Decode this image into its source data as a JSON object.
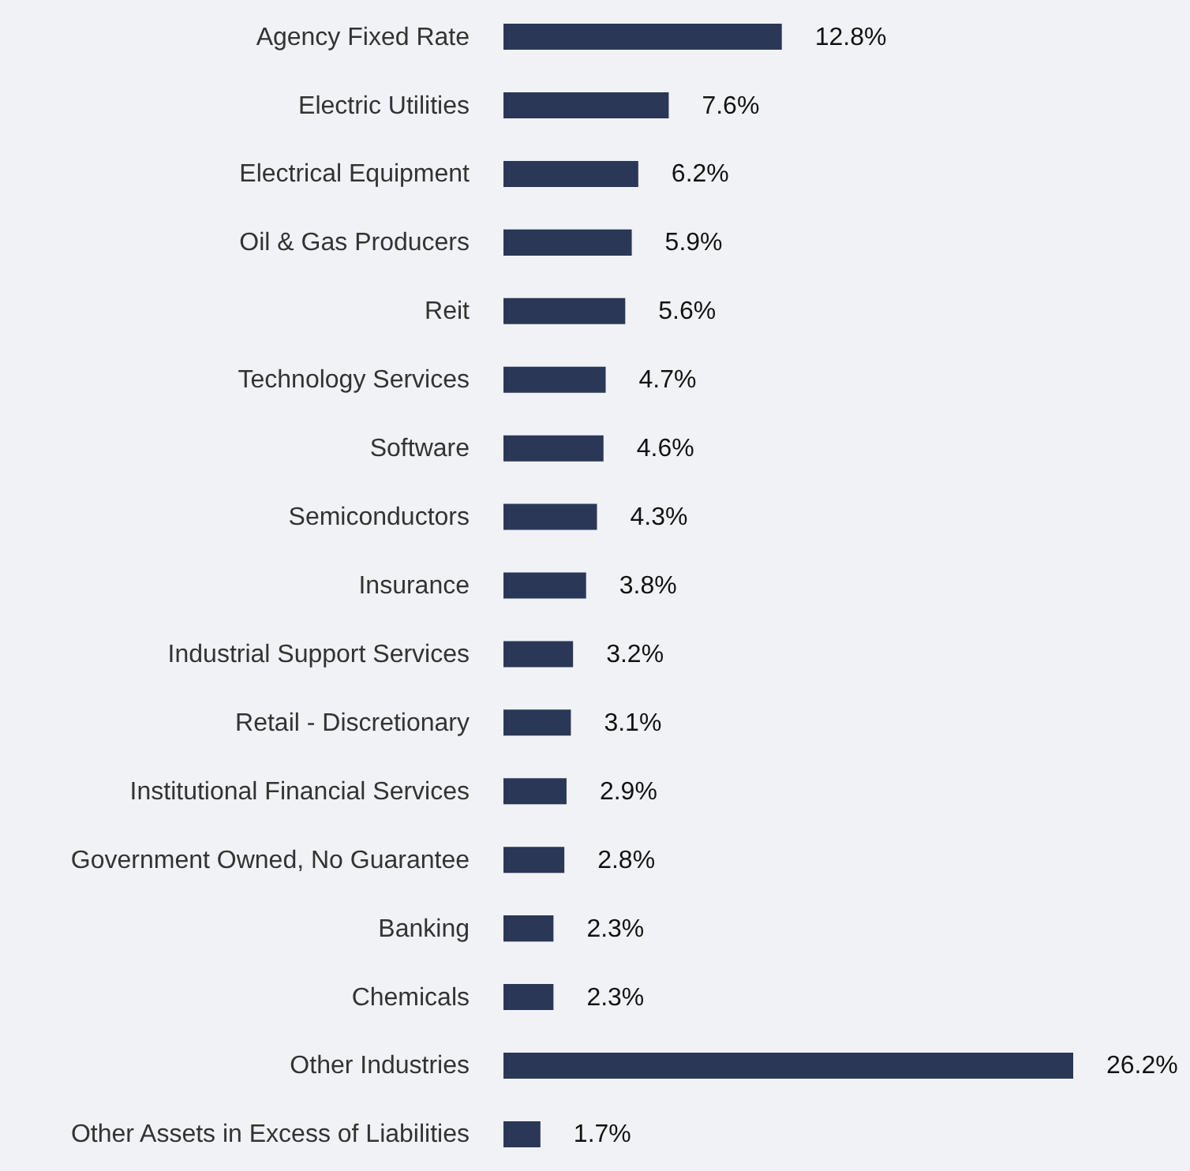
{
  "chart_data": {
    "type": "bar",
    "orientation": "horizontal",
    "value_labels": [
      "12.8%",
      "7.6%",
      "6.2%",
      "5.9%",
      "5.6%",
      "4.7%",
      "4.6%",
      "4.3%",
      "3.8%",
      "3.2%",
      "3.1%",
      "2.9%",
      "2.8%",
      "2.3%",
      "2.3%",
      "26.2%",
      "1.7%"
    ],
    "color": "#2b3756",
    "categories": [
      "Agency Fixed Rate",
      "Electric Utilities",
      "Electrical Equipment",
      "Oil & Gas Producers",
      "Reit",
      "Technology Services",
      "Software",
      "Semiconductors",
      "Insurance",
      "Industrial Support Services",
      "Retail - Discretionary",
      "Institutional Financial Services",
      "Government Owned, No Guarantee",
      "Banking",
      "Chemicals",
      "Other Industries",
      "Other Assets in Excess of Liabilities"
    ],
    "values": [
      12.8,
      7.6,
      6.2,
      5.9,
      5.6,
      4.7,
      4.6,
      4.3,
      3.8,
      3.2,
      3.1,
      2.9,
      2.8,
      2.3,
      2.3,
      26.2,
      1.7
    ]
  }
}
